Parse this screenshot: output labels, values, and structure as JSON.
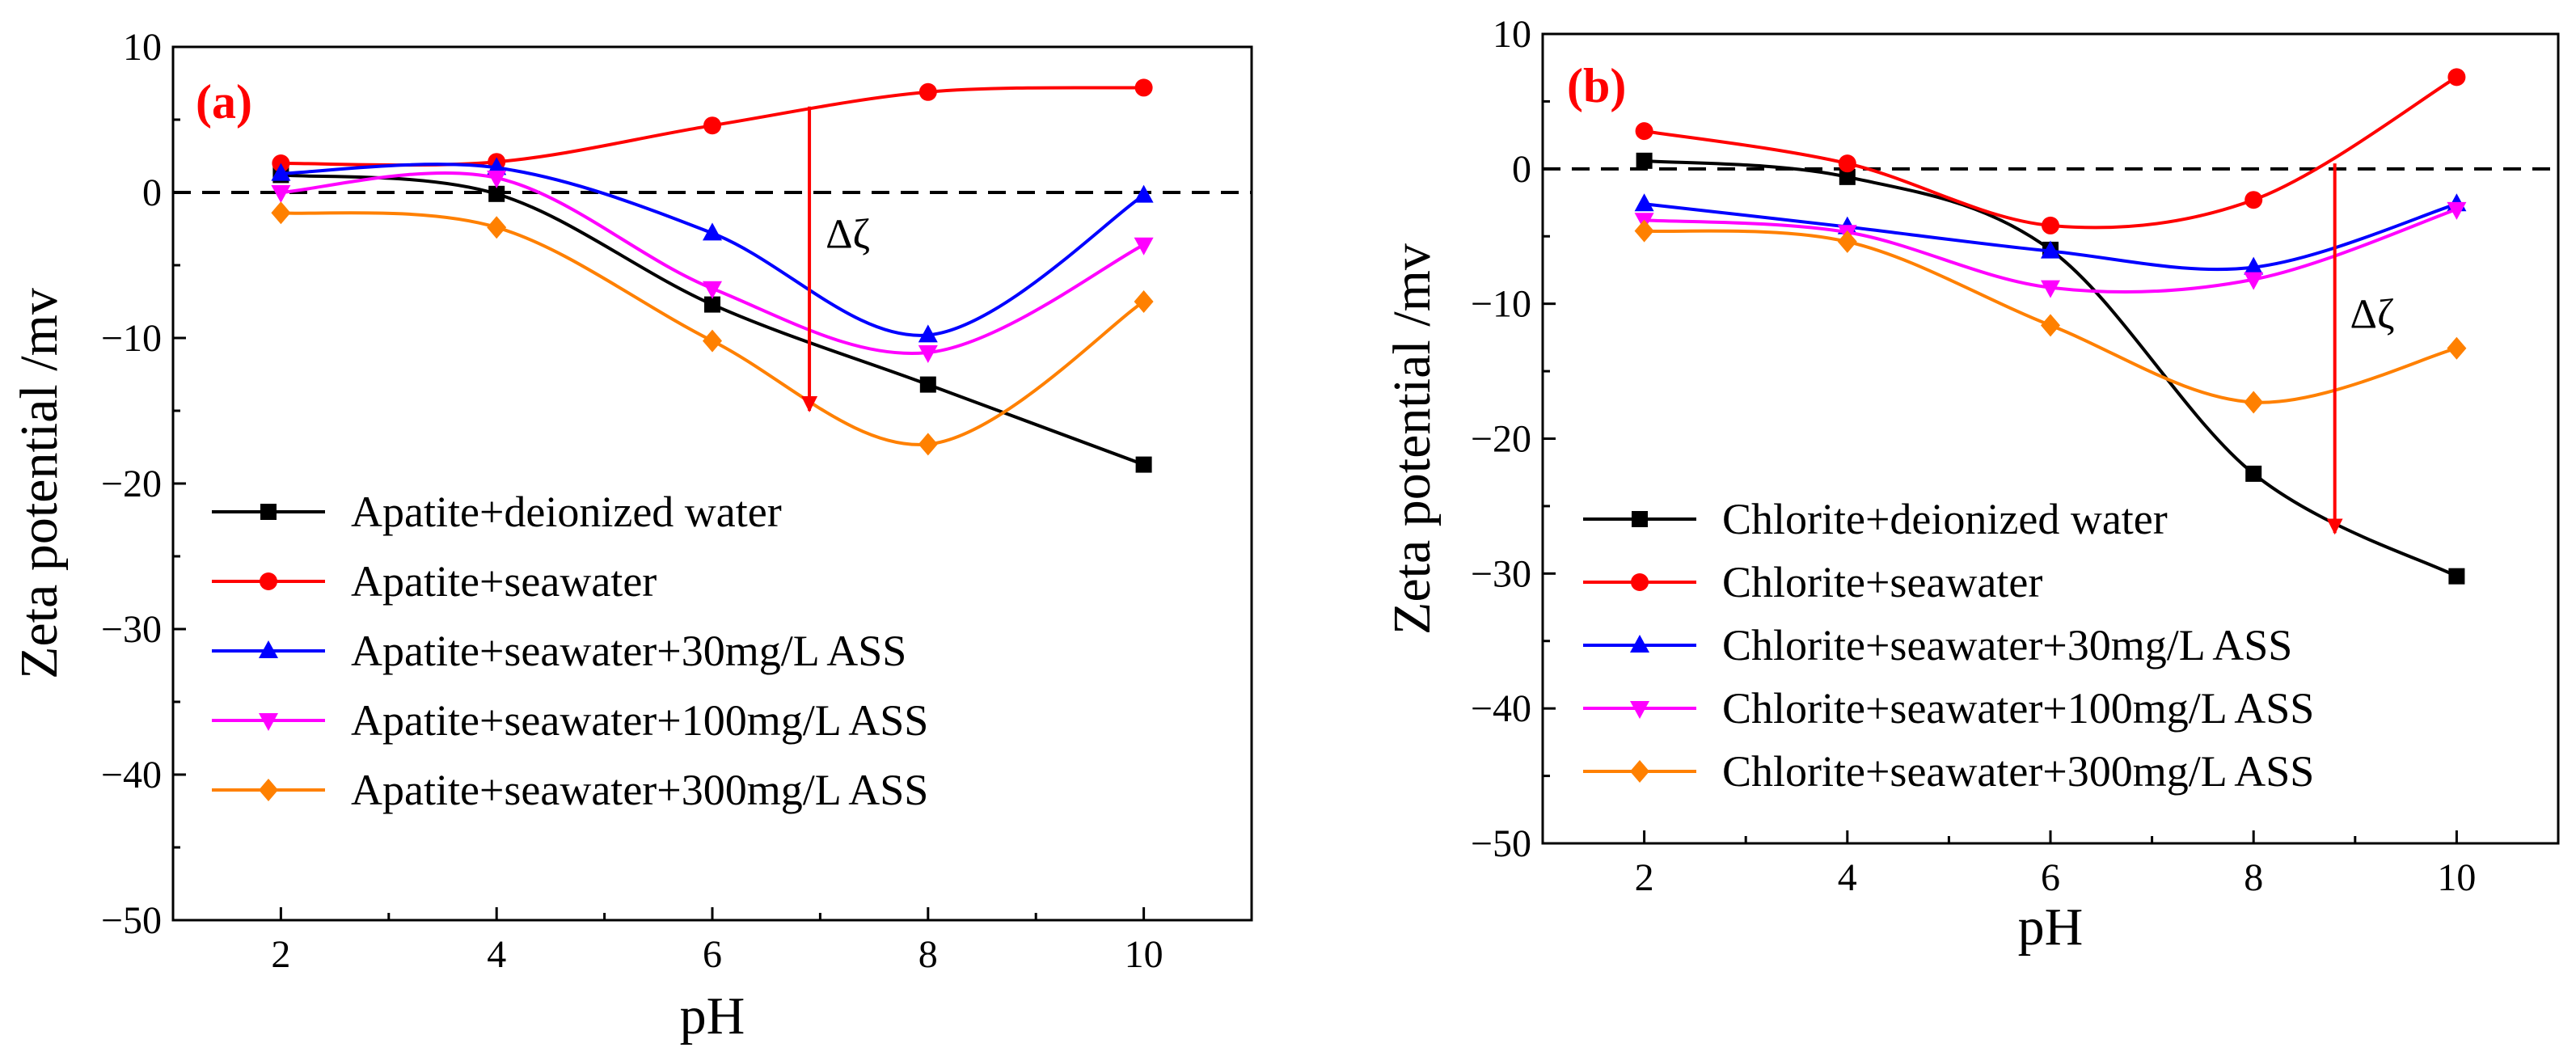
{
  "chart_data": [
    {
      "type": "line",
      "panel_label": "(a)",
      "xlabel": "pH",
      "ylabel": "Zeta potential /mv",
      "xlim": [
        1,
        11
      ],
      "ylim": [
        -50,
        10
      ],
      "xticks": [
        "2",
        "4",
        "6",
        "8",
        "10"
      ],
      "yticks": [
        "10",
        "0",
        "−10",
        "−20",
        "−30",
        "−40",
        "−50"
      ],
      "zero_line": true,
      "legend_position": "bottom-left",
      "annotation": {
        "text": "Δζ",
        "arrow_x": 6.9,
        "arrow_from": 5.9,
        "arrow_to": -15.0,
        "label_x": 7.05,
        "label_y": -3.8
      },
      "series": [
        {
          "name": "Apatite+deionized water",
          "color": "#000000",
          "marker": "square",
          "x": [
            2,
            4,
            6,
            8,
            10
          ],
          "y": [
            1.2,
            -0.1,
            -7.7,
            -13.2,
            -18.7
          ]
        },
        {
          "name": "Apatite+seawater",
          "color": "#ff0000",
          "marker": "circle",
          "x": [
            2,
            4,
            6,
            8,
            10
          ],
          "y": [
            2.0,
            2.1,
            4.6,
            6.9,
            7.2
          ]
        },
        {
          "name": "Apatite+seawater+30mg/L ASS",
          "color": "#0000ff",
          "marker": "triangle-up",
          "x": [
            2,
            4,
            6,
            8,
            10
          ],
          "y": [
            1.3,
            1.7,
            -2.8,
            -9.8,
            -0.2
          ]
        },
        {
          "name": "Apatite+seawater+100mg/L ASS",
          "color": "#ff00ff",
          "marker": "triangle-down",
          "x": [
            2,
            4,
            6,
            8,
            10
          ],
          "y": [
            0.0,
            1.0,
            -6.6,
            -11.0,
            -3.6
          ]
        },
        {
          "name": "Apatite+seawater+300mg/L ASS",
          "color": "#ff8000",
          "marker": "diamond",
          "x": [
            2,
            4,
            6,
            8,
            10
          ],
          "y": [
            -1.4,
            -2.4,
            -10.2,
            -17.3,
            -7.5
          ]
        }
      ]
    },
    {
      "type": "line",
      "panel_label": "(b)",
      "xlabel": "pH",
      "ylabel": "Zeta potential /mv",
      "xlim": [
        1,
        11
      ],
      "ylim": [
        -50,
        10
      ],
      "xticks": [
        "2",
        "4",
        "6",
        "8",
        "10"
      ],
      "yticks": [
        "10",
        "0",
        "−10",
        "−20",
        "−30",
        "−40",
        "−50"
      ],
      "zero_line": true,
      "legend_position": "bottom-left",
      "annotation": {
        "text": "Δζ",
        "arrow_x": 8.8,
        "arrow_from": 0.4,
        "arrow_to": -27.0,
        "label_x": 8.95,
        "label_y": -11.8
      },
      "series": [
        {
          "name": "Chlorite+deionized water",
          "color": "#000000",
          "marker": "square",
          "x": [
            2,
            4,
            6,
            8,
            10
          ],
          "y": [
            0.6,
            -0.6,
            -6.0,
            -22.6,
            -30.2
          ]
        },
        {
          "name": "Chlorite+seawater",
          "color": "#ff0000",
          "marker": "circle",
          "x": [
            2,
            4,
            6,
            8,
            10
          ],
          "y": [
            2.8,
            0.4,
            -4.2,
            -2.3,
            6.8
          ]
        },
        {
          "name": "Chlorite+seawater+30mg/L ASS",
          "color": "#0000ff",
          "marker": "triangle-up",
          "x": [
            2,
            4,
            6,
            8,
            10
          ],
          "y": [
            -2.6,
            -4.3,
            -6.1,
            -7.3,
            -2.6
          ]
        },
        {
          "name": "Chlorite+seawater+100mg/L ASS",
          "color": "#ff00ff",
          "marker": "triangle-down",
          "x": [
            2,
            4,
            6,
            8,
            10
          ],
          "y": [
            -3.8,
            -4.7,
            -8.8,
            -8.2,
            -3.0
          ]
        },
        {
          "name": "Chlorite+seawater+300mg/L ASS",
          "color": "#ff8000",
          "marker": "diamond",
          "x": [
            2,
            4,
            6,
            8,
            10
          ],
          "y": [
            -4.6,
            -5.4,
            -11.6,
            -17.3,
            -13.3
          ]
        }
      ]
    }
  ]
}
